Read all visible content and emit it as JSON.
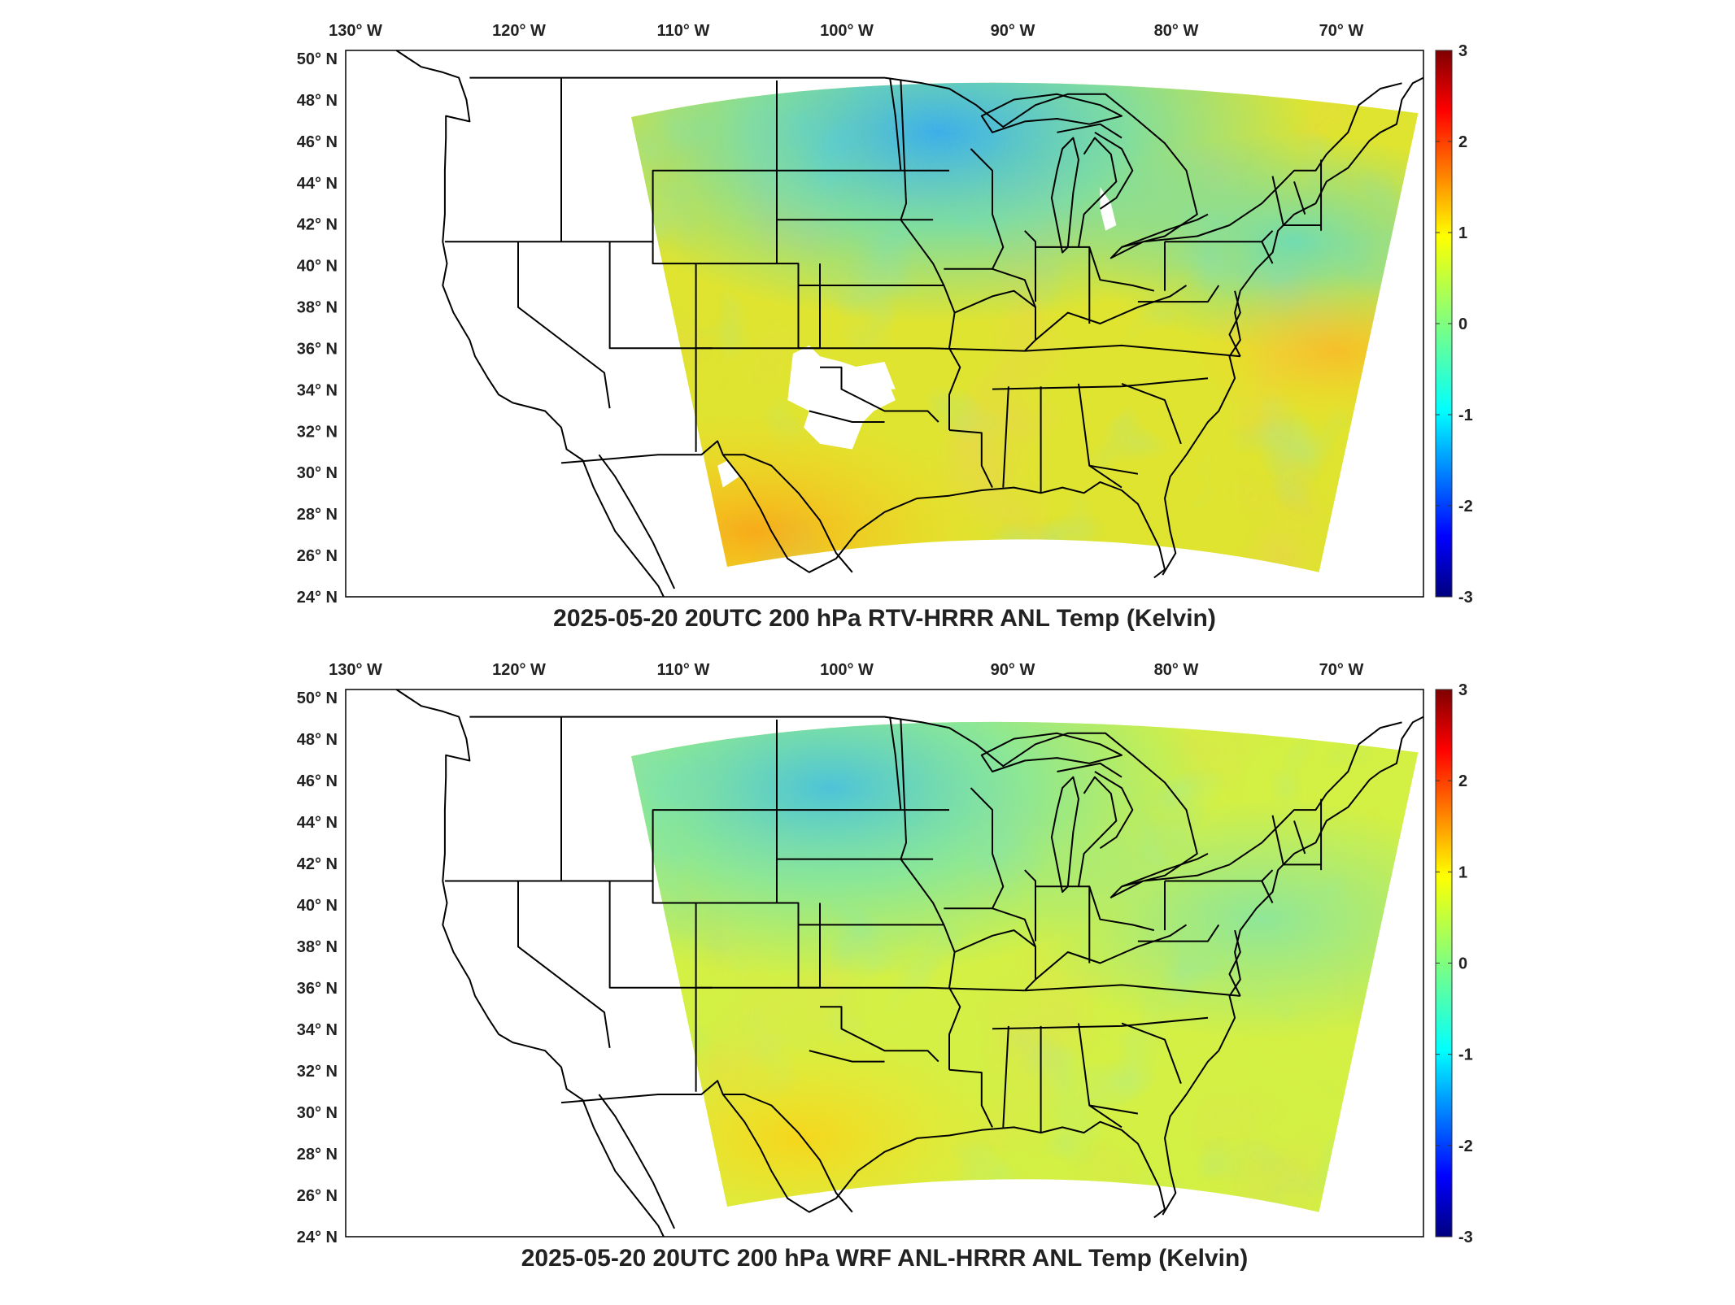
{
  "panels": [
    {
      "id": "top",
      "title": "2025-05-20 20UTC 200 hPa RTV-HRRR ANL Temp (Kelvin)",
      "field": "rtv",
      "lon_ticks": [
        "130° W",
        "120° W",
        "110° W",
        "100° W",
        "90° W",
        "80° W",
        "70° W"
      ],
      "lat_ticks": [
        "50° N",
        "48° N",
        "46° N",
        "44° N",
        "42° N",
        "40° N",
        "38° N",
        "36° N",
        "34° N",
        "32° N",
        "30° N",
        "28° N",
        "26° N",
        "24° N"
      ],
      "colorbar_ticks": [
        "3",
        "2",
        "1",
        "0",
        "-1",
        "-2",
        "-3"
      ]
    },
    {
      "id": "bottom",
      "title": "2025-05-20 20UTC 200 hPa WRF ANL-HRRR ANL Temp (Kelvin)",
      "field": "wrf",
      "lon_ticks": [
        "130° W",
        "120° W",
        "110° W",
        "100° W",
        "90° W",
        "80° W",
        "70° W"
      ],
      "lat_ticks": [
        "50° N",
        "48° N",
        "46° N",
        "44° N",
        "42° N",
        "40° N",
        "38° N",
        "36° N",
        "34° N",
        "32° N",
        "30° N",
        "28° N",
        "26° N",
        "24° N"
      ],
      "colorbar_ticks": [
        "3",
        "2",
        "1",
        "0",
        "-1",
        "-2",
        "-3"
      ]
    }
  ],
  "colors": {
    "colormap": "jet",
    "colorbar_range": [
      -3,
      3
    ],
    "boundaries": "#000000",
    "frame": "#000000"
  }
}
